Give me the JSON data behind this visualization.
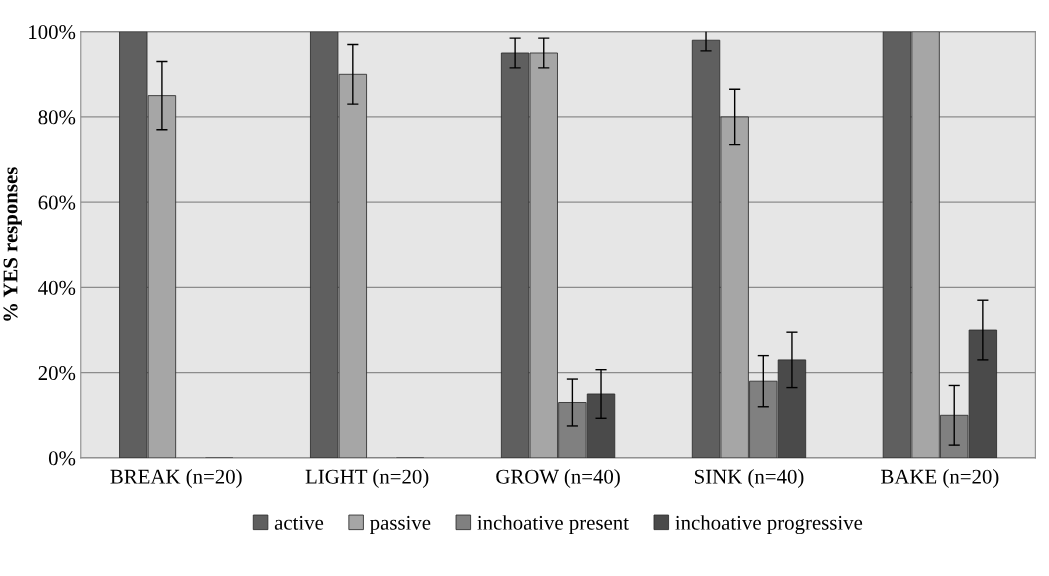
{
  "chart_data": {
    "type": "bar",
    "ylabel": "% YES responses",
    "categories": [
      "BREAK (n=20)",
      "LIGHT (n=20)",
      "GROW (n=40)",
      "SINK (n=40)",
      "BAKE (n=20)"
    ],
    "series": [
      {
        "name": "active",
        "color": "#5f5f5f",
        "values": [
          100,
          100,
          95,
          98,
          100
        ],
        "errors": [
          null,
          null,
          3.5,
          2.5,
          null
        ]
      },
      {
        "name": "passive",
        "color": "#a6a6a6",
        "values": [
          85,
          90,
          95,
          80,
          100
        ],
        "errors": [
          8,
          7,
          3.5,
          6.5,
          null
        ]
      },
      {
        "name": "inchoative present",
        "color": "#808080",
        "values": [
          0,
          0,
          13,
          18,
          10
        ],
        "errors": [
          null,
          null,
          5.5,
          6,
          7
        ]
      },
      {
        "name": "inchoative progressive",
        "color": "#4a4a4a",
        "values": [
          0,
          0,
          15,
          23,
          30
        ],
        "errors": [
          null,
          null,
          5.7,
          6.5,
          7
        ]
      }
    ],
    "ylim": [
      0,
      100
    ],
    "yticks": [
      {
        "value": 0,
        "label": "0%"
      },
      {
        "value": 20,
        "label": "20%"
      },
      {
        "value": 40,
        "label": "40%"
      },
      {
        "value": 60,
        "label": "60%"
      },
      {
        "value": 80,
        "label": "80%"
      },
      {
        "value": 100,
        "label": "100%"
      }
    ],
    "grid": "y",
    "legend": "bottom"
  }
}
